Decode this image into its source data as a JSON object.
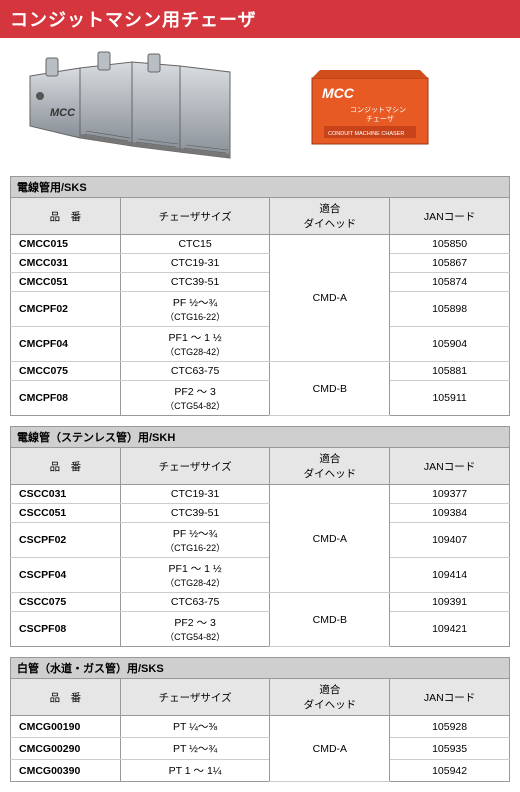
{
  "title": "コンジットマシン用チェーザ",
  "brand_on_tool": "MCC",
  "box_brand": "MCC",
  "box_text_jp": "コンジットマシン\nチェーザ",
  "box_text_en": "CONDUIT MACHINE CHASER",
  "columns": {
    "code": "品　番",
    "size": "チェーザサイズ",
    "die": "適合\nダイヘッド",
    "jan": "JANコード"
  },
  "tables": [
    {
      "title": "電線管用/SKS",
      "rows": [
        {
          "code": "CMCC015",
          "size": "CTC15",
          "die": "CMD-A",
          "die_span": 5,
          "jan": "105850"
        },
        {
          "code": "CMCC031",
          "size": "CTC19-31",
          "jan": "105867"
        },
        {
          "code": "CMCC051",
          "size": "CTC39-51",
          "jan": "105874"
        },
        {
          "code": "CMCPF02",
          "size": "PF ½～¾",
          "sub": "（CTG16-22）",
          "jan": "105898"
        },
        {
          "code": "CMCPF04",
          "size": "PF1 ～ 1 ½",
          "sub": "（CTG28-42）",
          "jan": "105904"
        },
        {
          "code": "CMCC075",
          "size": "CTC63-75",
          "die": "CMD-B",
          "die_span": 2,
          "jan": "105881"
        },
        {
          "code": "CMCPF08",
          "size": "PF2 ～ 3",
          "sub": "（CTG54-82）",
          "jan": "105911"
        }
      ]
    },
    {
      "title": "電線管（ステンレス管）用/SKH",
      "rows": [
        {
          "code": "CSCC031",
          "size": "CTC19-31",
          "die": "CMD-A",
          "die_span": 4,
          "jan": "109377"
        },
        {
          "code": "CSCC051",
          "size": "CTC39-51",
          "jan": "109384"
        },
        {
          "code": "CSCPF02",
          "size": "PF ½～¾",
          "sub": "（CTG16-22）",
          "jan": "109407"
        },
        {
          "code": "CSCPF04",
          "size": "PF1 ～ 1 ½",
          "sub": "（CTG28-42）",
          "jan": "109414"
        },
        {
          "code": "CSCC075",
          "size": "CTC63-75",
          "die": "CMD-B",
          "die_span": 2,
          "jan": "109391"
        },
        {
          "code": "CSCPF08",
          "size": "PF2 ～ 3",
          "sub": "（CTG54-82）",
          "jan": "109421"
        }
      ]
    },
    {
      "title": "白管（水道・ガス管）用/SKS",
      "rows": [
        {
          "code": "CMCG00190",
          "size": "PT ¼～⅜",
          "die": "CMD-A",
          "die_span": 3,
          "jan": "105928"
        },
        {
          "code": "CMCG00290",
          "size": "PT ½～¾",
          "jan": "105935"
        },
        {
          "code": "CMCG00390",
          "size": "PT 1 ～ 1¼",
          "jan": "105942"
        }
      ]
    }
  ],
  "colors": {
    "header_bg": "#d5363d",
    "box_bg": "#e85a23",
    "metal_light": "#c8ccd0",
    "metal_dark": "#7a8088"
  }
}
